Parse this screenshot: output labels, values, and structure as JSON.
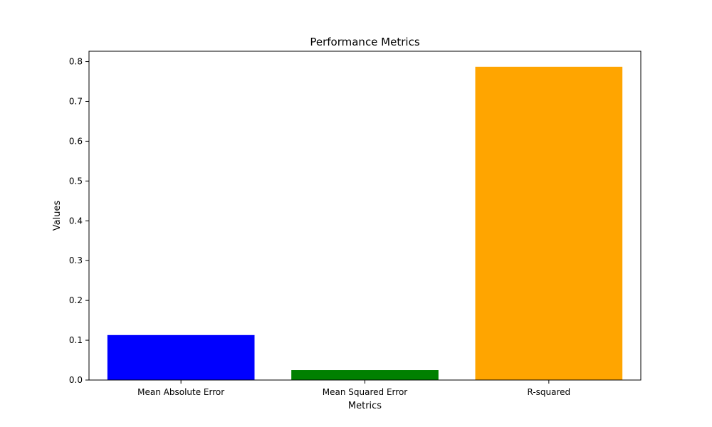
{
  "chart_data": {
    "type": "bar",
    "title": "Performance Metrics",
    "xlabel": "Metrics",
    "ylabel": "Values",
    "categories": [
      "Mean Absolute Error",
      "Mean Squared Error",
      "R-squared"
    ],
    "values": [
      0.113,
      0.025,
      0.787
    ],
    "colors": [
      "#0000ff",
      "#008000",
      "#ffa500"
    ],
    "ylim": [
      0,
      0.826
    ],
    "yticks": [
      0.0,
      0.1,
      0.2,
      0.3,
      0.4,
      0.5,
      0.6,
      0.7,
      0.8
    ],
    "ytick_labels": [
      "0.0",
      "0.1",
      "0.2",
      "0.3",
      "0.4",
      "0.5",
      "0.6",
      "0.7",
      "0.8"
    ],
    "grid": false,
    "legend": "none"
  }
}
